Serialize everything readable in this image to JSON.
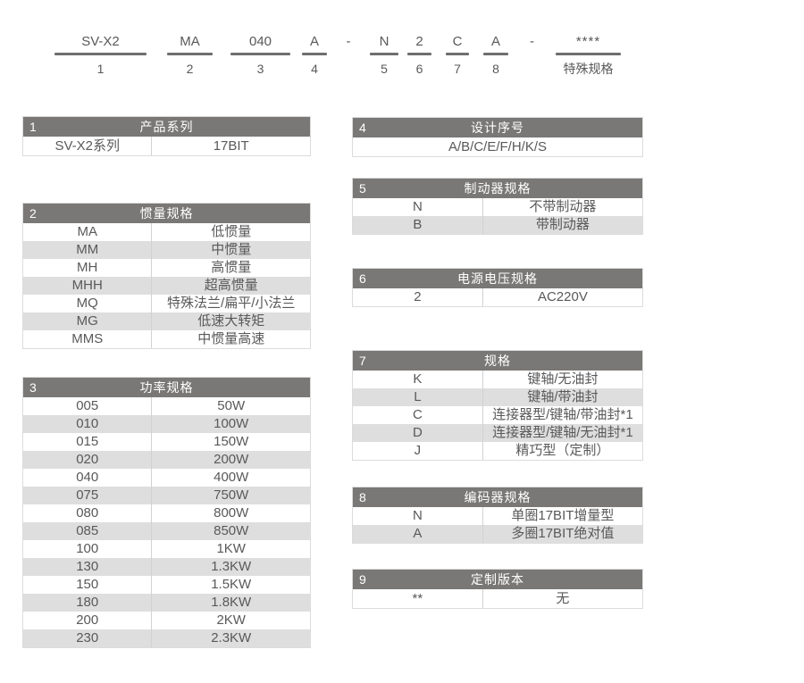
{
  "model_code": {
    "segments": [
      {
        "code": "SV-X2",
        "label": "1"
      },
      {
        "code": "MA",
        "label": "2"
      },
      {
        "code": "040",
        "label": "3"
      },
      {
        "code": "A",
        "label": "4"
      },
      {
        "code": "-",
        "label": ""
      },
      {
        "code": "N",
        "label": "5"
      },
      {
        "code": "2",
        "label": "6"
      },
      {
        "code": "C",
        "label": "7"
      },
      {
        "code": "A",
        "label": "8"
      },
      {
        "code": "-",
        "label": ""
      },
      {
        "code": "****",
        "label": "特殊规格"
      }
    ]
  },
  "tables": [
    {
      "num": "1",
      "title": "产品系列",
      "rows": [
        [
          "SV-X2系列",
          "17BIT"
        ]
      ]
    },
    {
      "num": "2",
      "title": "惯量规格",
      "rows": [
        [
          "MA",
          "低惯量"
        ],
        [
          "MM",
          "中惯量"
        ],
        [
          "MH",
          "高惯量"
        ],
        [
          "MHH",
          "超高惯量"
        ],
        [
          "MQ",
          "特殊法兰/扁平/小法兰"
        ],
        [
          "MG",
          "低速大转矩"
        ],
        [
          "MMS",
          "中惯量高速"
        ]
      ]
    },
    {
      "num": "3",
      "title": "功率规格",
      "rows": [
        [
          "005",
          "50W"
        ],
        [
          "010",
          "100W"
        ],
        [
          "015",
          "150W"
        ],
        [
          "020",
          "200W"
        ],
        [
          "040",
          "400W"
        ],
        [
          "075",
          "750W"
        ],
        [
          "080",
          "800W"
        ],
        [
          "085",
          "850W"
        ],
        [
          "100",
          "1KW"
        ],
        [
          "130",
          "1.3KW"
        ],
        [
          "150",
          "1.5KW"
        ],
        [
          "180",
          "1.8KW"
        ],
        [
          "200",
          "2KW"
        ],
        [
          "230",
          "2.3KW"
        ]
      ]
    },
    {
      "num": "4",
      "title": "设计序号",
      "merged_row": "A/B/C/E/F/H/K/S",
      "rows": []
    },
    {
      "num": "5",
      "title": "制动器规格",
      "rows": [
        [
          "N",
          "不带制动器"
        ],
        [
          "B",
          "带制动器"
        ]
      ]
    },
    {
      "num": "6",
      "title": "电源电压规格",
      "rows": [
        [
          "2",
          "AC220V"
        ]
      ]
    },
    {
      "num": "7",
      "title": "规格",
      "rows": [
        [
          "K",
          "键轴/无油封"
        ],
        [
          "L",
          "键轴/带油封"
        ],
        [
          "C",
          "连接器型/键轴/带油封*1"
        ],
        [
          "D",
          "连接器型/键轴/无油封*1"
        ],
        [
          "J",
          "精巧型（定制）"
        ]
      ]
    },
    {
      "num": "8",
      "title": "编码器规格",
      "rows": [
        [
          "N",
          "单圈17BIT增量型"
        ],
        [
          "A",
          "多圈17BIT绝对值"
        ]
      ]
    },
    {
      "num": "9",
      "title": "定制版本",
      "rows": [
        [
          "**",
          "无"
        ]
      ]
    }
  ],
  "colors": {
    "header_bg": "#7a7877",
    "row_alt": "#dedede",
    "text": "#595959",
    "underline": "#6e6e6e",
    "border": "#dcdcdc"
  }
}
